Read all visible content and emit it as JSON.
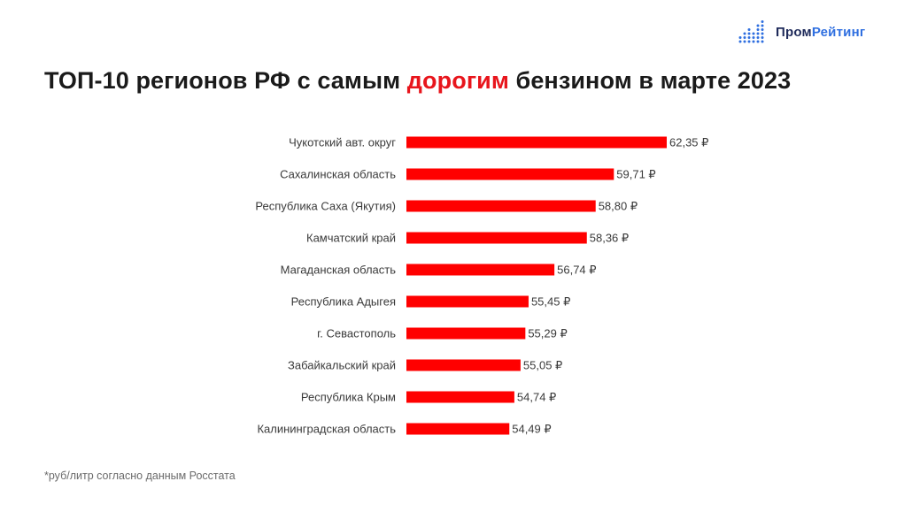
{
  "logo": {
    "part1": "Пром",
    "part2": "Рейтинг",
    "accent_color": "#2f6fe0",
    "dark_color": "#1e2a5a"
  },
  "title": {
    "before": "ТОП-10 регионов РФ с самым ",
    "highlight": "дорогим",
    "after": " бензином в марте 2023"
  },
  "footnote": "*руб/литр согласно данным Росстата",
  "chart_data": {
    "type": "bar",
    "orientation": "horizontal",
    "bar_color": "#ff0000",
    "value_suffix": " ₽",
    "categories": [
      "Чукотский авт. округ",
      "Сахалинская область",
      "Республика Саха (Якутия)",
      "Камчатский край",
      "Магаданская область",
      "Республика Адыгея",
      "г. Севастополь",
      "Забайкальский край",
      "Республика Крым",
      "Калининградская область"
    ],
    "values": [
      62.35,
      59.71,
      58.8,
      58.36,
      56.74,
      55.45,
      55.29,
      55.05,
      54.74,
      54.49
    ],
    "labels": [
      "62,35 ₽",
      "59,71 ₽",
      "58,80 ₽",
      "58,36 ₽",
      "56,74 ₽",
      "55,45 ₽",
      "55,29 ₽",
      "55,05 ₽",
      "54,74 ₽",
      "54,49 ₽"
    ],
    "xlim": [
      49.35,
      62.35
    ],
    "title": "ТОП-10 регионов РФ с самым дорогим бензином в марте 2023",
    "xlabel": "",
    "ylabel": ""
  }
}
